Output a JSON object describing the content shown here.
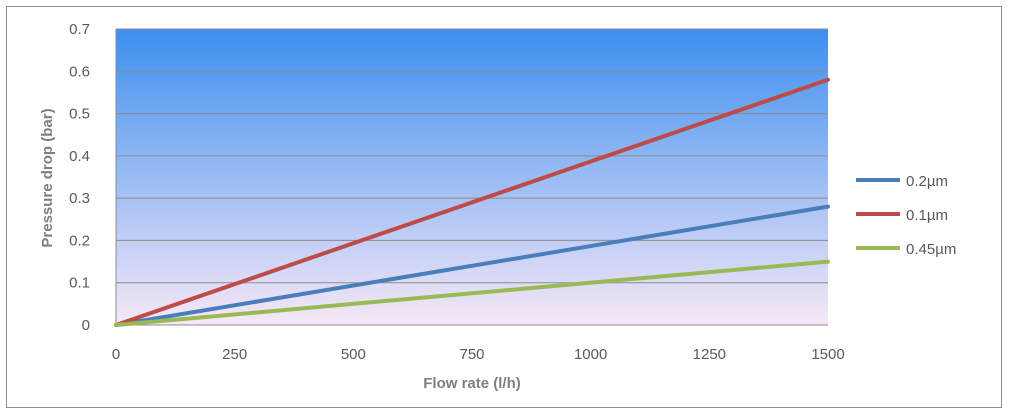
{
  "chart_data": {
    "type": "line",
    "title": "",
    "xlabel": "Flow rate (l/h)",
    "ylabel": "Pressure drop (bar)",
    "xlim": [
      0,
      1500
    ],
    "ylim": [
      0,
      0.7
    ],
    "x_ticks": [
      "0",
      "250",
      "500",
      "750",
      "1000",
      "1250",
      "1500"
    ],
    "y_ticks": [
      "0",
      "0.1",
      "0.2",
      "0.3",
      "0.4",
      "0.5",
      "0.6",
      "0.7"
    ],
    "grid": "horizontal",
    "legend_position": "right",
    "background_gradient": [
      "#3c8ff0",
      "#f7e8f7"
    ],
    "series": [
      {
        "name": "0.2µm",
        "color": "#4a7ebb",
        "x": [
          0,
          1500
        ],
        "y": [
          0,
          0.28
        ]
      },
      {
        "name": "0.1µm",
        "color": "#be4b48",
        "x": [
          0,
          1500
        ],
        "y": [
          0,
          0.58
        ]
      },
      {
        "name": "0.45µm",
        "color": "#98b954",
        "x": [
          0,
          1500
        ],
        "y": [
          0,
          0.15
        ]
      }
    ]
  }
}
